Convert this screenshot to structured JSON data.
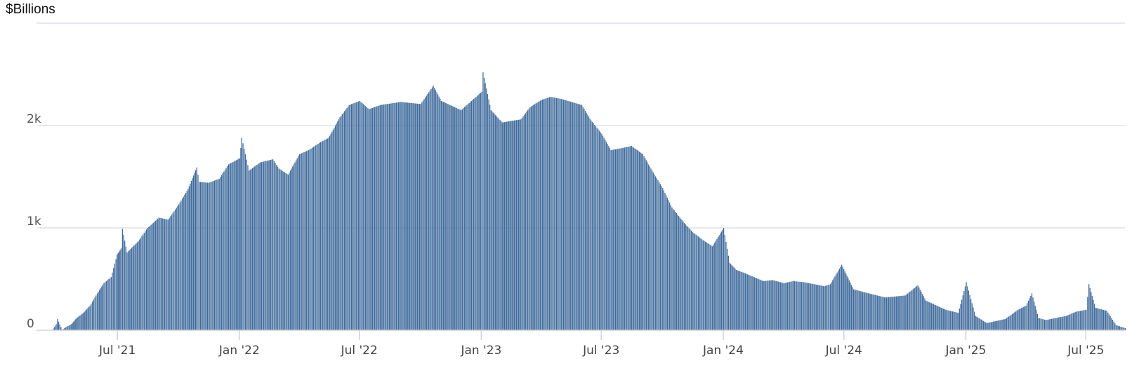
{
  "chart_data": {
    "type": "bar",
    "unit_label": "$Billions",
    "x_axis": {
      "type": "datetime",
      "range": [
        "2021-03-01",
        "2025-08-29"
      ],
      "ticks": [
        {
          "date": "2021-07-01",
          "label": "Jul '21"
        },
        {
          "date": "2022-01-01",
          "label": "Jan '22"
        },
        {
          "date": "2022-07-01",
          "label": "Jul '22"
        },
        {
          "date": "2023-01-01",
          "label": "Jan '23"
        },
        {
          "date": "2023-07-01",
          "label": "Jul '23"
        },
        {
          "date": "2024-01-01",
          "label": "Jan '24"
        },
        {
          "date": "2024-07-01",
          "label": "Jul '24"
        },
        {
          "date": "2025-01-01",
          "label": "Jan '25"
        },
        {
          "date": "2025-07-01",
          "label": "Jul '25"
        }
      ]
    },
    "y_axis": {
      "range": [
        0,
        3000
      ],
      "ticks": [
        {
          "value": 0,
          "label": "0"
        },
        {
          "value": 1000,
          "label": "1k"
        },
        {
          "value": 2000,
          "label": "2k"
        }
      ],
      "grid": true
    },
    "series": [
      {
        "color": "#3f6b9c",
        "data": [
          [
            "2021-03-17",
            0
          ],
          [
            "2021-03-24",
            3
          ],
          [
            "2021-03-31",
            60
          ],
          [
            "2021-04-01",
            110
          ],
          [
            "2021-04-08",
            5
          ],
          [
            "2021-04-15",
            35
          ],
          [
            "2021-04-22",
            60
          ],
          [
            "2021-04-30",
            120
          ],
          [
            "2021-05-10",
            170
          ],
          [
            "2021-05-20",
            240
          ],
          [
            "2021-05-31",
            360
          ],
          [
            "2021-06-10",
            460
          ],
          [
            "2021-06-21",
            520
          ],
          [
            "2021-06-30",
            740
          ],
          [
            "2021-07-06",
            800
          ],
          [
            "2021-07-08",
            990
          ],
          [
            "2021-07-15",
            760
          ],
          [
            "2021-08-01",
            870
          ],
          [
            "2021-08-15",
            1000
          ],
          [
            "2021-09-01",
            1100
          ],
          [
            "2021-09-15",
            1080
          ],
          [
            "2021-10-01",
            1230
          ],
          [
            "2021-10-15",
            1380
          ],
          [
            "2021-10-28",
            1590
          ],
          [
            "2021-11-01",
            1450
          ],
          [
            "2021-11-15",
            1440
          ],
          [
            "2021-12-01",
            1480
          ],
          [
            "2021-12-15",
            1620
          ],
          [
            "2022-01-01",
            1680
          ],
          [
            "2022-01-04",
            1880
          ],
          [
            "2022-01-15",
            1560
          ],
          [
            "2022-02-01",
            1640
          ],
          [
            "2022-02-20",
            1670
          ],
          [
            "2022-03-01",
            1580
          ],
          [
            "2022-03-15",
            1520
          ],
          [
            "2022-04-01",
            1720
          ],
          [
            "2022-04-15",
            1760
          ],
          [
            "2022-05-01",
            1830
          ],
          [
            "2022-05-15",
            1880
          ],
          [
            "2022-06-01",
            2080
          ],
          [
            "2022-06-15",
            2200
          ],
          [
            "2022-07-01",
            2240
          ],
          [
            "2022-07-15",
            2160
          ],
          [
            "2022-08-01",
            2200
          ],
          [
            "2022-09-01",
            2230
          ],
          [
            "2022-10-01",
            2210
          ],
          [
            "2022-10-20",
            2390
          ],
          [
            "2022-11-01",
            2240
          ],
          [
            "2022-12-01",
            2150
          ],
          [
            "2023-01-01",
            2330
          ],
          [
            "2023-01-03",
            2520
          ],
          [
            "2023-01-15",
            2150
          ],
          [
            "2023-02-01",
            2030
          ],
          [
            "2023-03-01",
            2060
          ],
          [
            "2023-03-15",
            2180
          ],
          [
            "2023-04-01",
            2250
          ],
          [
            "2023-04-15",
            2280
          ],
          [
            "2023-05-01",
            2260
          ],
          [
            "2023-06-01",
            2200
          ],
          [
            "2023-06-15",
            2050
          ],
          [
            "2023-07-01",
            1920
          ],
          [
            "2023-07-15",
            1760
          ],
          [
            "2023-08-01",
            1780
          ],
          [
            "2023-08-15",
            1800
          ],
          [
            "2023-09-01",
            1720
          ],
          [
            "2023-09-15",
            1560
          ],
          [
            "2023-10-01",
            1390
          ],
          [
            "2023-10-15",
            1200
          ],
          [
            "2023-11-01",
            1060
          ],
          [
            "2023-11-15",
            960
          ],
          [
            "2023-12-01",
            880
          ],
          [
            "2023-12-15",
            820
          ],
          [
            "2024-01-01",
            1000
          ],
          [
            "2024-01-10",
            660
          ],
          [
            "2024-01-20",
            590
          ],
          [
            "2024-02-01",
            560
          ],
          [
            "2024-03-01",
            480
          ],
          [
            "2024-03-15",
            490
          ],
          [
            "2024-04-01",
            460
          ],
          [
            "2024-04-15",
            480
          ],
          [
            "2024-05-01",
            470
          ],
          [
            "2024-06-01",
            430
          ],
          [
            "2024-06-10",
            450
          ],
          [
            "2024-06-27",
            640
          ],
          [
            "2024-07-15",
            400
          ],
          [
            "2024-08-01",
            370
          ],
          [
            "2024-09-01",
            320
          ],
          [
            "2024-10-01",
            340
          ],
          [
            "2024-10-20",
            440
          ],
          [
            "2024-11-01",
            290
          ],
          [
            "2024-12-01",
            200
          ],
          [
            "2024-12-20",
            170
          ],
          [
            "2025-01-01",
            470
          ],
          [
            "2025-01-15",
            140
          ],
          [
            "2025-02-01",
            70
          ],
          [
            "2025-03-01",
            110
          ],
          [
            "2025-03-20",
            200
          ],
          [
            "2025-04-01",
            240
          ],
          [
            "2025-04-10",
            360
          ],
          [
            "2025-04-20",
            120
          ],
          [
            "2025-05-01",
            100
          ],
          [
            "2025-06-01",
            140
          ],
          [
            "2025-06-15",
            180
          ],
          [
            "2025-07-01",
            200
          ],
          [
            "2025-07-05",
            450
          ],
          [
            "2025-07-15",
            220
          ],
          [
            "2025-08-01",
            190
          ],
          [
            "2025-08-15",
            50
          ],
          [
            "2025-08-29",
            20
          ]
        ]
      }
    ]
  }
}
